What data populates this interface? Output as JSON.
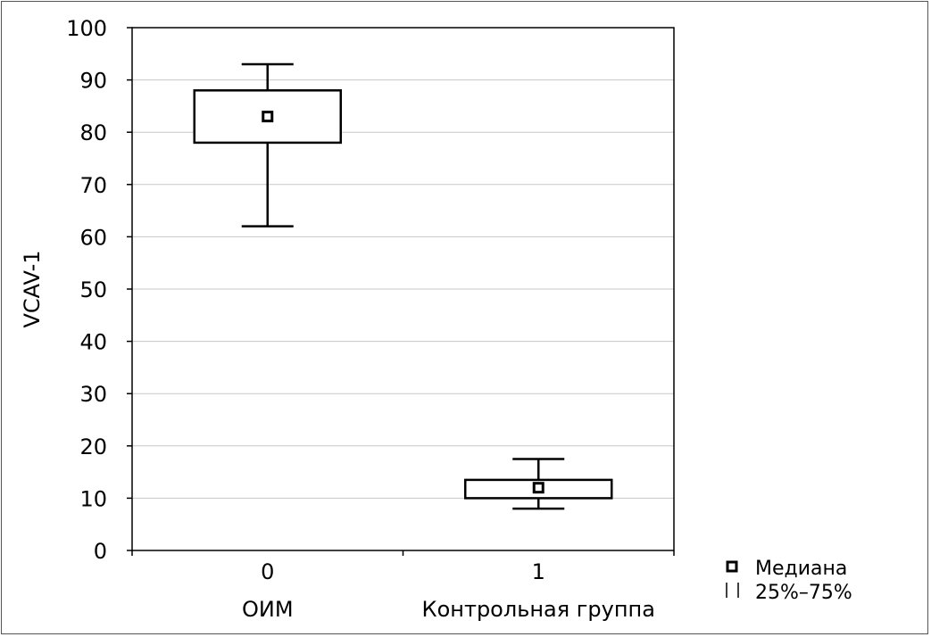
{
  "chart_data": {
    "type": "box",
    "ylabel": "VCAV-1",
    "ylim": [
      0,
      100
    ],
    "yticks": [
      0,
      10,
      20,
      30,
      40,
      50,
      60,
      70,
      80,
      90,
      100
    ],
    "grid": true,
    "categories": [
      {
        "code": "0",
        "name": "ОИМ",
        "median": 83,
        "q1": 78,
        "q3": 88,
        "whisker_low": 62,
        "whisker_high": 93
      },
      {
        "code": "1",
        "name": "Контрольная группа",
        "median": 12,
        "q1": 10,
        "q3": 13.5,
        "whisker_low": 8,
        "whisker_high": 17.5
      }
    ],
    "legend": {
      "position": "bottom-right",
      "median_label": "Медиана",
      "box_label": "25%–75%"
    }
  }
}
